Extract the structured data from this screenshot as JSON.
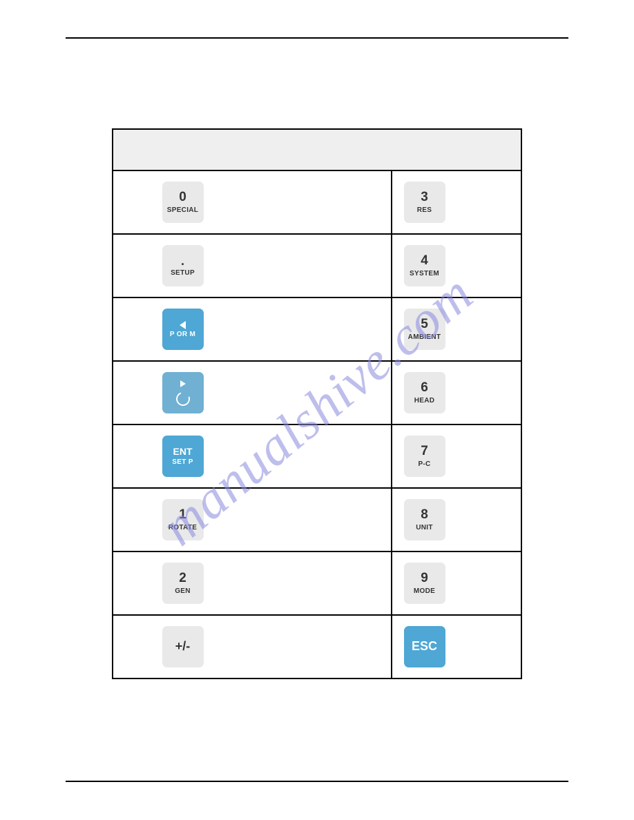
{
  "watermark": {
    "text": "manualshive.com",
    "color": "#8a8ae0"
  },
  "colors": {
    "grey_key_bg": "#e9e9e9",
    "grey_key_fg": "#333333",
    "blue_key_bg": "#4ea7d4",
    "blue_key2_bg": "#6fb0d3",
    "blue_key_fg": "#ffffff",
    "header_bg": "#efefef",
    "border": "#000000",
    "page_bg": "#ffffff"
  },
  "rows": [
    {
      "left": {
        "top": "0",
        "bottom": "SPECIAL",
        "style": "grey"
      },
      "right": {
        "top": "3",
        "bottom": "RES",
        "style": "grey"
      }
    },
    {
      "left": {
        "top": ".",
        "bottom": "SETUP",
        "style": "grey",
        "top_is_dot": true
      },
      "right": {
        "top": "4",
        "bottom": "SYSTEM",
        "style": "grey"
      }
    },
    {
      "left": {
        "icon": "triangle-left",
        "bottom": "P OR M",
        "style": "blue"
      },
      "right": {
        "top": "5",
        "bottom": "AMBIENT",
        "style": "grey"
      }
    },
    {
      "left": {
        "icon": "play-rotate",
        "style": "blue2"
      },
      "right": {
        "top": "6",
        "bottom": "HEAD",
        "style": "grey"
      }
    },
    {
      "left": {
        "top": "ENT",
        "bottom": "SET P",
        "style": "blue",
        "top_is_mid": true
      },
      "right": {
        "top": "7",
        "bottom": "P-C",
        "style": "grey"
      }
    },
    {
      "left": {
        "top": "1",
        "bottom": "ROTATE",
        "style": "grey"
      },
      "right": {
        "top": "8",
        "bottom": "UNIT",
        "style": "grey"
      }
    },
    {
      "left": {
        "top": "2",
        "bottom": "GEN",
        "style": "grey"
      },
      "right": {
        "top": "9",
        "bottom": "MODE",
        "style": "grey"
      }
    },
    {
      "left": {
        "top": "+/-",
        "style": "grey",
        "single": true
      },
      "right": {
        "top": "ESC",
        "style": "blue",
        "single": true
      }
    }
  ]
}
